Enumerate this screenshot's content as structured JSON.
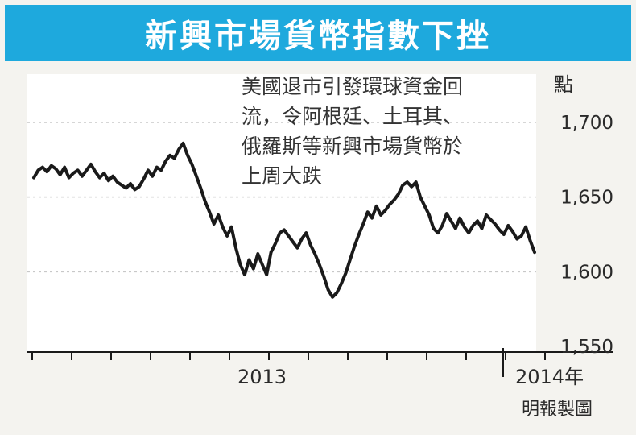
{
  "title": "新興市場貨幣指數下挫",
  "source": "明報製圖",
  "colors": {
    "title_bg": "#1ea9dd",
    "plot_bg": "#ffffff",
    "line": "#1a1a1a",
    "grid": "#c8c8c8"
  },
  "chart_data": {
    "type": "line",
    "title": "新興市場貨幣指數下挫",
    "unit_label": "點",
    "annotation": [
      "美國退市引發環球資金回",
      "流，令阿根廷、土耳其、",
      "俄羅斯等新興市場貨幣於",
      "上周大跌"
    ],
    "x_tick_labels": [
      "2013",
      "2014年"
    ],
    "y_ticks": [
      1550,
      1600,
      1650,
      1700
    ],
    "ylim": [
      1550,
      1705
    ],
    "grid": "horizontal dashed",
    "series": [
      {
        "values": [
          1663,
          1668,
          1670,
          1667,
          1671,
          1669,
          1665,
          1670,
          1663,
          1666,
          1668,
          1664,
          1668,
          1672,
          1667,
          1663,
          1666,
          1661,
          1664,
          1660,
          1658,
          1656,
          1659,
          1655,
          1657,
          1662,
          1668,
          1664,
          1670,
          1668,
          1674,
          1678,
          1676,
          1682,
          1686,
          1678,
          1672,
          1664,
          1656,
          1647,
          1640,
          1632,
          1638,
          1630,
          1624,
          1630,
          1616,
          1605,
          1598,
          1608,
          1602,
          1612,
          1605,
          1598,
          1613,
          1619,
          1626,
          1628,
          1624,
          1620,
          1616,
          1622,
          1626,
          1618,
          1612,
          1605,
          1597,
          1588,
          1583,
          1586,
          1592,
          1599,
          1608,
          1617,
          1625,
          1632,
          1640,
          1636,
          1644,
          1638,
          1641,
          1645,
          1648,
          1652,
          1658,
          1660,
          1657,
          1660,
          1650,
          1644,
          1638,
          1629,
          1626,
          1631,
          1639,
          1634,
          1629,
          1636,
          1630,
          1626,
          1631,
          1634,
          1629,
          1638,
          1635,
          1632,
          1628,
          1625,
          1631,
          1627,
          1622,
          1624,
          1630,
          1621,
          1613
        ]
      }
    ]
  }
}
